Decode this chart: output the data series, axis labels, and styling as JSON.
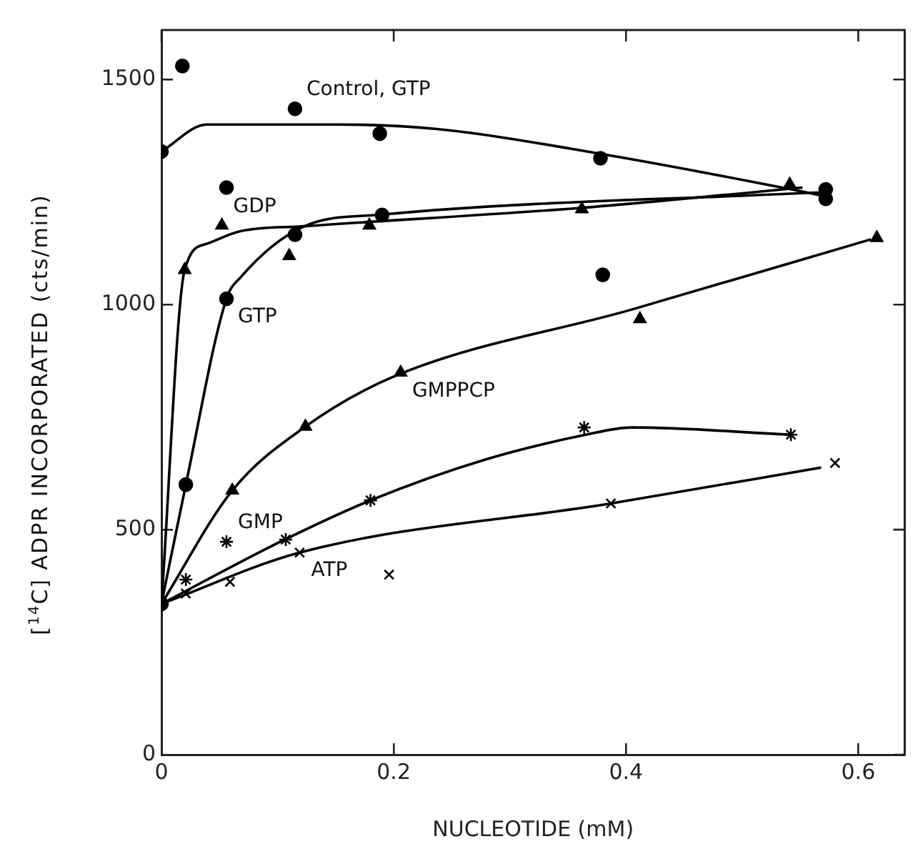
{
  "chart_data": {
    "type": "scatter",
    "xlabel": "NUCLEOTIDE (mM)",
    "ylabel": "[$^{14}$C] ADPR INCORPORATED (cts/min)",
    "xlim": [
      0,
      0.64
    ],
    "xticks": [
      0,
      0.2,
      0.4,
      0.6
    ],
    "ylim": [
      0,
      1610
    ],
    "yticks": [
      0,
      500,
      1000,
      1500
    ],
    "grid": false,
    "legend": false,
    "series": [
      {
        "type": "scatter",
        "marker": "circle",
        "color": "#000000",
        "x": [
          0,
          0.018,
          0.056,
          0.115,
          0.188,
          0.378,
          0.572
        ],
        "values": [
          1340,
          1530,
          1260,
          1435,
          1380,
          1325,
          1235
        ]
      },
      {
        "type": "line",
        "marker": "none",
        "color": "#000000",
        "x": [
          0,
          0.039,
          0.152,
          0.237,
          0.378,
          0.544,
          0.572
        ],
        "values": [
          1340,
          1400,
          1400,
          1390,
          1335,
          1255,
          1240
        ]
      },
      {
        "type": "scatter",
        "marker": "triangle",
        "color": "#000000",
        "x": [
          0.02,
          0.052,
          0.11,
          0.179,
          0.362,
          0.541
        ],
        "values": [
          1077,
          1176,
          1108,
          1176,
          1212,
          1267
        ]
      },
      {
        "type": "line",
        "marker": "none",
        "color": "#000000",
        "x": [
          0,
          0.02,
          0.039,
          0.068,
          0.123,
          0.362,
          0.552
        ],
        "values": [
          335,
          1077,
          1135,
          1163,
          1174,
          1215,
          1260
        ]
      },
      {
        "type": "scatter",
        "marker": "circle",
        "color": "#000000",
        "x": [
          0,
          0.021,
          0.056,
          0.115,
          0.19,
          0.38,
          0.572
        ],
        "values": [
          335,
          600,
          1013,
          1155,
          1199,
          1066,
          1256
        ]
      },
      {
        "type": "line",
        "marker": "none",
        "color": "#000000",
        "x": [
          0,
          0.021,
          0.056,
          0.068,
          0.123,
          0.19,
          0.572
        ],
        "values": [
          335,
          600,
          1013,
          1060,
          1174,
          1200,
          1250
        ]
      },
      {
        "type": "scatter",
        "marker": "triangle",
        "color": "#000000",
        "x": [
          0.061,
          0.124,
          0.206,
          0.412,
          0.616
        ],
        "values": [
          587,
          729,
          849,
          968,
          1148
        ]
      },
      {
        "type": "line",
        "marker": "none",
        "color": "#000000",
        "x": [
          0,
          0.061,
          0.124,
          0.2,
          0.405,
          0.611
        ],
        "values": [
          335,
          587,
          729,
          840,
          989,
          1145
        ]
      },
      {
        "type": "scatter",
        "color": "#000000",
        "x": [
          0.021,
          0.056,
          0.107,
          0.18,
          0.364,
          0.542
        ],
        "values": [
          389,
          473,
          478,
          565,
          727,
          711
        ]
      },
      {
        "type": "line",
        "marker": "none",
        "color": "#000000",
        "x": [
          0,
          0.1,
          0.18,
          0.278,
          0.364,
          0.405,
          0.542
        ],
        "values": [
          335,
          470,
          565,
          655,
          710,
          727,
          711
        ]
      },
      {
        "type": "scatter",
        "marker": "cross",
        "color": "#000000",
        "x": [
          0.021,
          0.059,
          0.119,
          0.196,
          0.387,
          0.58
        ],
        "values": [
          358,
          384,
          449,
          400,
          558,
          648
        ]
      },
      {
        "type": "line",
        "marker": "none",
        "color": "#000000",
        "x": [
          0,
          0.119,
          0.387,
          0.568
        ],
        "values": [
          335,
          449,
          558,
          638
        ]
      }
    ],
    "annotations": [
      {
        "text": "Control, GTP",
        "x": 0.115,
        "y": 1435
      },
      {
        "text": "GDP",
        "x": 0.052,
        "y": 1176
      },
      {
        "text": "GTP",
        "x": 0.056,
        "y": 1013
      },
      {
        "text": "GMPPCP",
        "x": 0.206,
        "y": 849
      },
      {
        "text": "GMP",
        "x": 0.056,
        "y": 473
      },
      {
        "text": "ATP",
        "x": 0.119,
        "y": 449
      }
    ]
  }
}
